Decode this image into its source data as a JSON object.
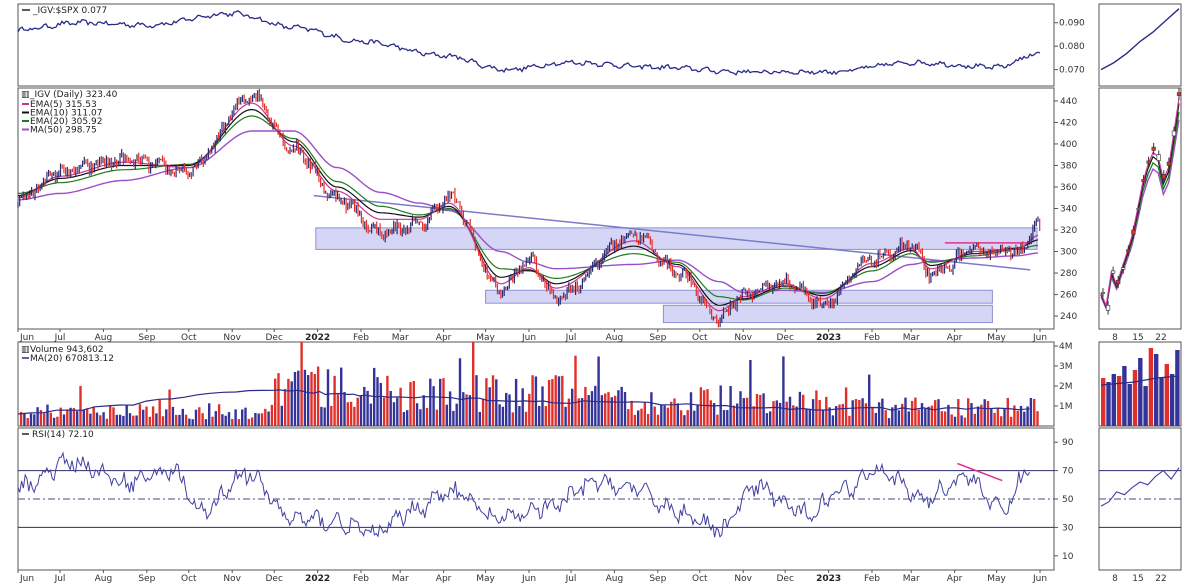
{
  "colors": {
    "background": "#ffffff",
    "panel_border": "#555555",
    "price_line": "#2b2b8a",
    "ema5": "#cc3399",
    "ema10": "#111111",
    "ema20": "#1e7a1e",
    "ma50": "#9b4fc7",
    "zone_fill": "#c7c8f3",
    "zone_stroke": "#8d8fd8",
    "vol_up": "#33339a",
    "vol_down": "#e0302b",
    "rsi_line": "#4040a0",
    "divergence": "#e0308c"
  },
  "chart_data": [
    {
      "type": "line",
      "panel": "ratio",
      "title": "_IGV:$SPX 0.077",
      "x": [
        "2021-06-01",
        "2021-07-15",
        "2021-09-01",
        "2021-11-01",
        "2021-12-15",
        "2022-02-01",
        "2022-04-01",
        "2022-05-15",
        "2022-07-01",
        "2022-09-01",
        "2022-11-01",
        "2023-01-01",
        "2023-03-01",
        "2023-05-01",
        "2023-06-01"
      ],
      "series": [
        {
          "name": "_IGV:$SPX",
          "values": [
            0.087,
            0.09,
            0.089,
            0.094,
            0.088,
            0.082,
            0.076,
            0.07,
            0.073,
            0.071,
            0.069,
            0.069,
            0.073,
            0.071,
            0.077
          ]
        }
      ],
      "ylim": [
        0.063,
        0.098
      ],
      "yticks": [
        "0.090",
        "0.080",
        "0.070"
      ],
      "inset_values": [
        0.07,
        0.073,
        0.077,
        0.082,
        0.086,
        0.091,
        0.096
      ]
    },
    {
      "type": "line",
      "panel": "price",
      "title": "_IGV (Daily) 323.40",
      "ylim": [
        228,
        452
      ],
      "yticks": [
        "440",
        "420",
        "400",
        "380",
        "360",
        "340",
        "320",
        "300",
        "280",
        "260",
        "240"
      ],
      "legend": [
        {
          "name": "EMA(5) 315.53",
          "color": "#cc3399"
        },
        {
          "name": "EMA(10) 311.07",
          "color": "#111111"
        },
        {
          "name": "EMA(20) 305.92",
          "color": "#1e7a1e"
        },
        {
          "name": "MA(50) 298.75",
          "color": "#9b4fc7"
        }
      ],
      "x": [
        "2021-06-01",
        "2021-07-01",
        "2021-08-15",
        "2021-10-01",
        "2021-11-15",
        "2021-12-15",
        "2022-01-15",
        "2022-02-15",
        "2022-03-15",
        "2022-04-05",
        "2022-05-12",
        "2022-06-01",
        "2022-06-20",
        "2022-08-15",
        "2022-09-15",
        "2022-10-15",
        "2022-11-01",
        "2022-12-01",
        "2022-12-28",
        "2023-02-01",
        "2023-03-01",
        "2023-03-15",
        "2023-04-15",
        "2023-05-15",
        "2023-06-01"
      ],
      "series": [
        {
          "name": "_IGV",
          "values": [
            348,
            374,
            385,
            375,
            445,
            395,
            350,
            318,
            325,
            350,
            264,
            292,
            258,
            316,
            282,
            238,
            260,
            272,
            252,
            292,
            306,
            278,
            301,
            300,
            323
          ]
        },
        {
          "name": "EMA(5)",
          "values": [
            350,
            370,
            383,
            378,
            438,
            398,
            356,
            330,
            330,
            345,
            270,
            285,
            266,
            310,
            286,
            245,
            258,
            270,
            256,
            289,
            303,
            284,
            300,
            302,
            315.53
          ]
        },
        {
          "name": "EMA(10)",
          "values": [
            352,
            368,
            380,
            380,
            432,
            402,
            360,
            336,
            332,
            342,
            276,
            283,
            270,
            305,
            288,
            250,
            256,
            268,
            259,
            286,
            301,
            287,
            298,
            303,
            311.07
          ]
        },
        {
          "name": "EMA(20)",
          "values": [
            354,
            364,
            376,
            381,
            426,
            405,
            365,
            342,
            334,
            340,
            284,
            282,
            275,
            298,
            290,
            258,
            255,
            266,
            261,
            282,
            298,
            290,
            296,
            302,
            305.92
          ]
        },
        {
          "name": "MA(50)",
          "values": [
            348,
            354,
            366,
            378,
            412,
            412,
            378,
            355,
            345,
            338,
            300,
            290,
            284,
            288,
            292,
            272,
            262,
            264,
            262,
            272,
            288,
            291,
            294,
            296,
            298.75
          ]
        }
      ],
      "annotations": {
        "resistance_zone": [
          302,
          322
        ],
        "support_zone_1": [
          252,
          264
        ],
        "support_zone_2": [
          234,
          250
        ],
        "trendline": {
          "start": [
            "2021-12-15",
            352
          ],
          "end": [
            "2023-05-25",
            283
          ]
        },
        "breakout_line": {
          "y": 308,
          "from": "2023-03-25",
          "to": "2023-05-25"
        }
      },
      "inset_values": [
        262,
        250,
        282,
        270,
        285,
        300,
        316,
        340,
        365,
        382,
        394,
        390,
        368,
        380,
        412,
        445
      ]
    },
    {
      "type": "bar",
      "panel": "volume",
      "title": "Volume 943,602",
      "ma_label": "MA(20) 670813.12",
      "ylim": [
        0,
        4200000
      ],
      "yticks": [
        "4M",
        "3M",
        "2M",
        "1M"
      ],
      "segments": [
        {
          "from": "2021-06-01",
          "to": "2021-12-01",
          "level": 650000
        },
        {
          "from": "2021-12-01",
          "to": "2022-02-20",
          "level": 1750000
        },
        {
          "from": "2022-02-20",
          "to": "2022-07-01",
          "level": 1500000
        },
        {
          "from": "2022-07-01",
          "to": "2022-12-31",
          "level": 1200000
        },
        {
          "from": "2023-01-01",
          "to": "2023-06-01",
          "level": 850000
        }
      ],
      "inset_values": [
        2.4,
        2.2,
        2.6,
        2.5,
        3.0,
        2.1,
        2.8,
        3.4,
        2.0,
        3.9,
        3.6,
        2.4,
        3.1,
        2.6,
        3.8
      ]
    },
    {
      "type": "line",
      "panel": "rsi",
      "title": "RSI(14) 72.10",
      "ylim": [
        0,
        100
      ],
      "yticks": [
        "90",
        "70",
        "50",
        "30",
        "10"
      ],
      "levels": [
        70,
        50,
        30
      ],
      "x": [
        "2021-06-01",
        "2021-07-10",
        "2021-08-15",
        "2021-09-20",
        "2021-10-10",
        "2021-11-10",
        "2021-12-15",
        "2022-01-15",
        "2022-02-10",
        "2022-03-15",
        "2022-04-05",
        "2022-05-10",
        "2022-06-15",
        "2022-07-20",
        "2022-08-10",
        "2022-09-20",
        "2022-10-15",
        "2022-11-10",
        "2022-12-15",
        "2023-01-15",
        "2023-02-05",
        "2023-03-10",
        "2023-04-10",
        "2023-05-05",
        "2023-05-25"
      ],
      "series": [
        {
          "name": "RSI(14)",
          "values": [
            58,
            76,
            62,
            70,
            40,
            68,
            36,
            34,
            26,
            44,
            56,
            36,
            44,
            62,
            58,
            40,
            28,
            58,
            40,
            58,
            72,
            50,
            66,
            42,
            72.1
          ]
        }
      ],
      "divergence": {
        "from": [
          "2023-04-03",
          75
        ],
        "to": [
          "2023-05-05",
          63
        ]
      },
      "inset_values": [
        45,
        48,
        55,
        53,
        58,
        62,
        60,
        66,
        70,
        64,
        72
      ]
    }
  ],
  "x_axis": {
    "labels": [
      {
        "text": "Jun",
        "date": "2021-06-01",
        "bold": false
      },
      {
        "text": "Jul",
        "date": "2021-07-01",
        "bold": false
      },
      {
        "text": "Aug",
        "date": "2021-08-01",
        "bold": false
      },
      {
        "text": "Sep",
        "date": "2021-09-01",
        "bold": false
      },
      {
        "text": "Oct",
        "date": "2021-10-01",
        "bold": false
      },
      {
        "text": "Nov",
        "date": "2021-11-01",
        "bold": false
      },
      {
        "text": "Dec",
        "date": "2021-12-01",
        "bold": false
      },
      {
        "text": "2022",
        "date": "2022-01-01",
        "bold": true
      },
      {
        "text": "Feb",
        "date": "2022-02-01",
        "bold": false
      },
      {
        "text": "Mar",
        "date": "2022-03-01",
        "bold": false
      },
      {
        "text": "Apr",
        "date": "2022-04-01",
        "bold": false
      },
      {
        "text": "May",
        "date": "2022-05-01",
        "bold": false
      },
      {
        "text": "Jun",
        "date": "2022-06-01",
        "bold": false
      },
      {
        "text": "Jul",
        "date": "2022-07-01",
        "bold": false
      },
      {
        "text": "Aug",
        "date": "2022-08-01",
        "bold": false
      },
      {
        "text": "Sep",
        "date": "2022-09-01",
        "bold": false
      },
      {
        "text": "Oct",
        "date": "2022-10-01",
        "bold": false
      },
      {
        "text": "Nov",
        "date": "2022-11-01",
        "bold": false
      },
      {
        "text": "Dec",
        "date": "2022-12-01",
        "bold": false
      },
      {
        "text": "2023",
        "date": "2023-01-01",
        "bold": true
      },
      {
        "text": "Feb",
        "date": "2023-02-01",
        "bold": false
      },
      {
        "text": "Mar",
        "date": "2023-03-01",
        "bold": false
      },
      {
        "text": "Apr",
        "date": "2023-04-01",
        "bold": false
      },
      {
        "text": "May",
        "date": "2023-05-01",
        "bold": false
      },
      {
        "text": "Jun",
        "date": "2023-06-01",
        "bold": false
      }
    ],
    "start": "2021-06-01",
    "end": "2023-06-01",
    "inset_labels": [
      "8",
      "15",
      "22"
    ]
  }
}
